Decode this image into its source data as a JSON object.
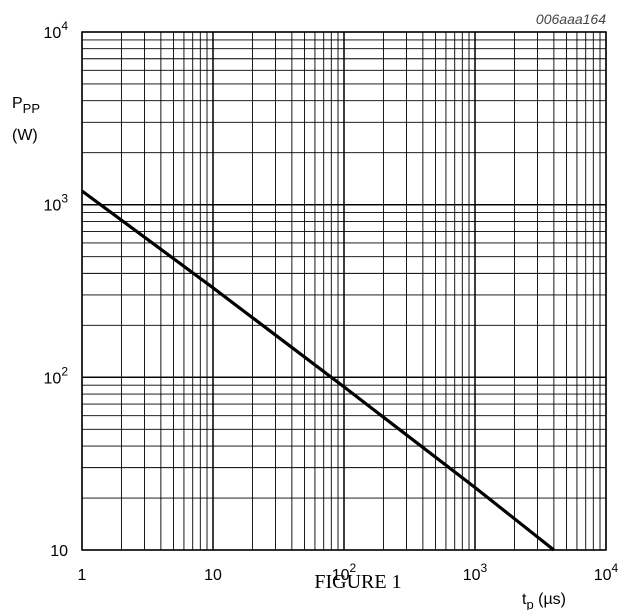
{
  "chart_data": {
    "type": "line",
    "figure_code": "006aaa164",
    "caption": "FIGURE 1",
    "ylabel": {
      "main": "P",
      "sub": "PP",
      "unit": "(W)"
    },
    "xlabel": {
      "main": "t",
      "sub": "p",
      "unit": " (µs)"
    },
    "x_scale": "log",
    "y_scale": "log",
    "xlim": [
      1,
      10000
    ],
    "ylim": [
      10,
      10000
    ],
    "grid": true,
    "x_ticks": [
      {
        "value": 1,
        "base": "1",
        "exp": ""
      },
      {
        "value": 10,
        "base": "10",
        "exp": ""
      },
      {
        "value": 100,
        "base": "10",
        "exp": "2"
      },
      {
        "value": 1000,
        "base": "10",
        "exp": "3"
      },
      {
        "value": 10000,
        "base": "10",
        "exp": "4"
      }
    ],
    "y_ticks": [
      {
        "value": 10,
        "base": "10",
        "exp": ""
      },
      {
        "value": 100,
        "base": "10",
        "exp": "2"
      },
      {
        "value": 1000,
        "base": "10",
        "exp": "3"
      },
      {
        "value": 10000,
        "base": "10",
        "exp": "4"
      }
    ],
    "series": [
      {
        "x": [
          1,
          10,
          100,
          1000,
          4000
        ],
        "y": [
          1200,
          330,
          88,
          23,
          10
        ]
      }
    ]
  }
}
